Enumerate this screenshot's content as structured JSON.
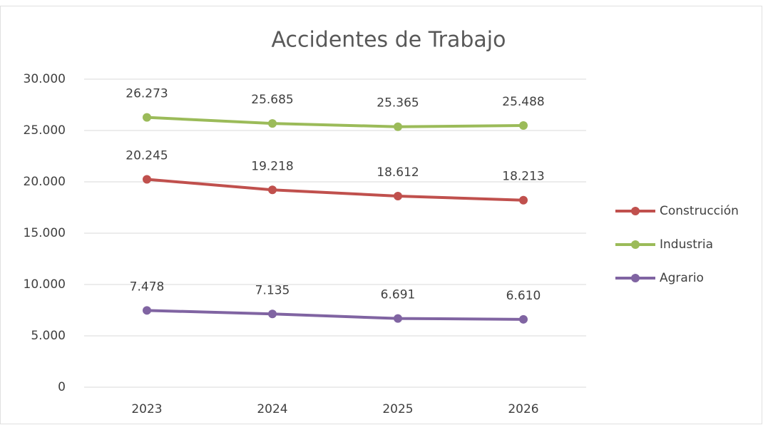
{
  "chart_data": {
    "type": "line",
    "title": "Accidentes de Trabajo",
    "categories": [
      "2023",
      "2024",
      "2025",
      "2026"
    ],
    "series": [
      {
        "name": "Construcción",
        "color": "#c0504d",
        "values": [
          20245,
          19218,
          18612,
          18213
        ],
        "value_labels": [
          "20.245",
          "19.218",
          "18.612",
          "18.213"
        ]
      },
      {
        "name": "Industria",
        "color": "#9bbb59",
        "values": [
          26273,
          25685,
          25365,
          25488
        ],
        "value_labels": [
          "26.273",
          "25.685",
          "25.365",
          "25.488"
        ]
      },
      {
        "name": "Agrario",
        "color": "#8064a2",
        "values": [
          7478,
          7135,
          6691,
          6610
        ],
        "value_labels": [
          "7.478",
          "7.135",
          "6.691",
          "6.610"
        ]
      }
    ],
    "ylim": [
      0,
      30000
    ],
    "yticks": [
      0,
      {
        "value": 5000,
        "label": "5.000"
      },
      {
        "value": 10000,
        "label": "10.000"
      },
      {
        "value": 15000,
        "label": "15.000"
      },
      {
        "value": 20000,
        "label": "20.000"
      },
      {
        "value": 25000,
        "label": "25.000"
      },
      {
        "value": 30000,
        "label": "30.000"
      }
    ],
    "grid": true,
    "legend": "right"
  }
}
